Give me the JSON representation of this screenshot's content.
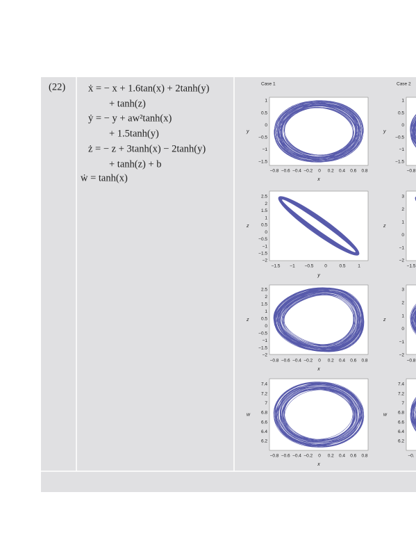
{
  "row": {
    "number": "(22)",
    "equations": [
      "ẋ = − x + 1.6tan(x) + 2tanh(y)",
      "+ tanh(z)",
      "ẏ = − y + aw²tanh(x)",
      "+ 1.5tanh(y)",
      "ż = − z + 3tanh(x) − 2tanh(y)",
      "+ tanh(z) + b",
      "ẇ = tanh(x)"
    ],
    "cases": [
      {
        "title": "Case 1",
        "panels": [
          {
            "ylabel": "y",
            "xlabel": "x",
            "yticks": [
              "1",
              "0.5",
              "0",
              "−0.5",
              "−1",
              "−1.5"
            ],
            "xticks": [
              "−0.8",
              "−0.6",
              "−0.4",
              "−0.2",
              "0",
              "0.2",
              "0.4",
              "0.6",
              "0.8"
            ]
          },
          {
            "ylabel": "z",
            "xlabel": "y",
            "yticks": [
              "2.5",
              "2",
              "1.5",
              "1",
              "0.5",
              "0",
              "−0.5",
              "−1",
              "−1.5",
              "−2"
            ],
            "xticks": [
              "−1.5",
              "−1",
              "−0.5",
              "0",
              "0.5",
              "1"
            ]
          },
          {
            "ylabel": "z",
            "xlabel": "x",
            "yticks": [
              "2.5",
              "2",
              "1.5",
              "1",
              "0.5",
              "0",
              "−0.5",
              "−1",
              "−1.5",
              "−2"
            ],
            "xticks": [
              "−0.8",
              "−0.6",
              "−0.4",
              "−0.2",
              "0",
              "0.2",
              "0.4",
              "0.6",
              "0.8"
            ]
          },
          {
            "ylabel": "w",
            "xlabel": "x",
            "yticks": [
              "7.4",
              "7.2",
              "7",
              "6.8",
              "6.6",
              "6.4",
              "6.2"
            ],
            "xticks": [
              "−0.8",
              "−0.6",
              "−0.4",
              "−0.2",
              "0",
              "0.2",
              "0.4",
              "0.6",
              "0.8"
            ]
          }
        ]
      },
      {
        "title": "Case 2",
        "panels": [
          {
            "ylabel": "y",
            "yticks": [
              "1",
              "0.5",
              "0",
              "−0.5",
              "−1",
              "−1.5"
            ],
            "xticks": [
              "−0.8"
            ]
          },
          {
            "ylabel": "z",
            "yticks": [
              "3",
              "2",
              "1",
              "0",
              "−1",
              "−2"
            ],
            "xticks": [
              "−1.5"
            ]
          },
          {
            "ylabel": "z",
            "yticks": [
              "3",
              "2",
              "1",
              "0",
              "−1",
              "−2"
            ],
            "xticks": [
              "−0.8"
            ]
          },
          {
            "ylabel": "w",
            "yticks": [
              "7.4",
              "7.2",
              "7",
              "6.8",
              "6.6",
              "6.4",
              "6.2"
            ],
            "xticks": [
              "−0."
            ]
          }
        ]
      }
    ]
  }
}
